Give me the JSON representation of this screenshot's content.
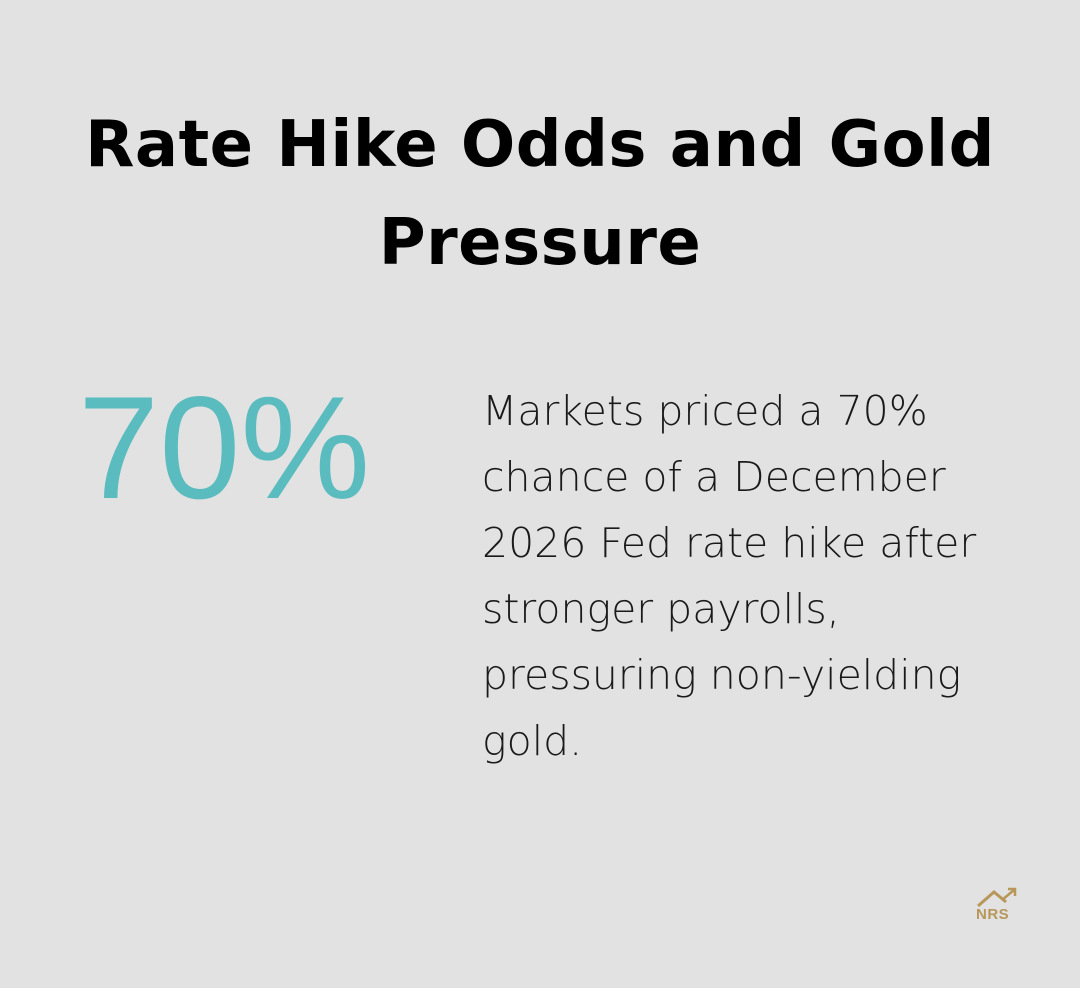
{
  "title": "Rate Hike Odds and Gold Pressure",
  "stat": {
    "value": "70%",
    "description": "Markets priced a 70% chance of a December 2026 Fed rate hike after stronger payrolls, pressuring non-yielding gold."
  },
  "logo": {
    "text": "NRS"
  }
}
